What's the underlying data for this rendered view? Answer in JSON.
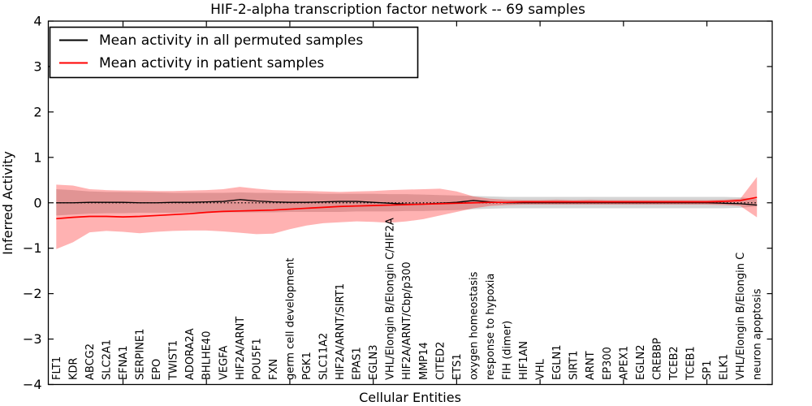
{
  "window": {
    "title": "HIF-2-alpha transcription factor network -- 69 samples"
  },
  "legend": {
    "position": "upper-left",
    "entries": [
      {
        "label": "Mean activity in all permuted samples",
        "color": "#000000"
      },
      {
        "label": "Mean activity in patient samples",
        "color": "#ff0000"
      }
    ]
  },
  "chart_data": {
    "type": "line",
    "title": "HIF-2-alpha transcription factor network -- 69 samples",
    "xlabel": "Cellular Entities",
    "ylabel": "Inferred Activity",
    "ylim": [
      -4,
      4
    ],
    "yticks": [
      4,
      3,
      2,
      1,
      0,
      -1,
      -2,
      -3,
      -4
    ],
    "ytick_labels": [
      "4",
      "3",
      "2",
      "1",
      "0",
      "−1",
      "−2",
      "−3",
      "−4"
    ],
    "xtick_index_positions": [
      4,
      9,
      14,
      19,
      24,
      29,
      34,
      39
    ],
    "grid": false,
    "zero_line": {
      "show": true,
      "style": "dotted",
      "color": "#000000",
      "value": 0
    },
    "legend_position": "upper left",
    "categories": [
      "FLT1",
      "KDR",
      "ABCG2",
      "SLC2A1",
      "EFNA1",
      "SERPINE1",
      "EPO",
      "TWIST1",
      "ADORA2A",
      "BHLHE40",
      "VEGFA",
      "HIF2A/ARNT",
      "POU5F1",
      "FXN",
      "germ cell development",
      "PGK1",
      "SLC11A2",
      "HIF2A/ARNT/SIRT1",
      "EPAS1",
      "EGLN3",
      "VHL/Elongin B/Elongin C/HIF2A",
      "HIF2A/ARNT/Cbp/p300",
      "MMP14",
      "CITED2",
      "ETS1",
      "oxygen homeostasis",
      "response to hypoxia",
      "FIH (dimer)",
      "HIF1AN",
      "VHL",
      "EGLN1",
      "SIRT1",
      "ARNT",
      "EP300",
      "APEX1",
      "EGLN2",
      "CREBBP",
      "TCEB2",
      "TCEB1",
      "SP1",
      "ELK1",
      "VHL/Elongin B/Elongin C",
      "neuron apoptosis"
    ],
    "series": [
      {
        "name": "Mean activity in all permuted samples",
        "color": "#000000",
        "line_width": 1.3,
        "values": [
          0.0,
          0.0,
          0.01,
          0.01,
          0.01,
          0.0,
          0.0,
          0.01,
          0.01,
          0.02,
          0.03,
          0.07,
          0.04,
          0.02,
          0.01,
          0.01,
          0.02,
          0.03,
          0.03,
          0.01,
          -0.01,
          -0.03,
          -0.03,
          -0.01,
          0.01,
          0.05,
          0.02,
          0.0,
          0.0,
          0.0,
          0.0,
          0.0,
          0.0,
          0.0,
          0.0,
          0.0,
          0.0,
          0.0,
          0.0,
          0.0,
          -0.01,
          -0.02,
          -0.05
        ]
      },
      {
        "name": "Mean activity in patient samples",
        "color": "#ff0000",
        "line_width": 1.7,
        "values": [
          -0.35,
          -0.32,
          -0.3,
          -0.3,
          -0.31,
          -0.3,
          -0.28,
          -0.26,
          -0.24,
          -0.21,
          -0.19,
          -0.18,
          -0.17,
          -0.16,
          -0.14,
          -0.12,
          -0.1,
          -0.08,
          -0.07,
          -0.06,
          -0.05,
          -0.04,
          -0.03,
          -0.02,
          -0.01,
          0.0,
          0.01,
          0.01,
          0.02,
          0.02,
          0.02,
          0.02,
          0.02,
          0.02,
          0.02,
          0.02,
          0.02,
          0.02,
          0.02,
          0.02,
          0.03,
          0.05,
          0.12
        ]
      }
    ],
    "bands": [
      {
        "name": "permuted-samples-std-band",
        "color": "#808080",
        "opacity": 0.33,
        "upper": [
          0.3,
          0.28,
          0.25,
          0.24,
          0.24,
          0.23,
          0.23,
          0.22,
          0.22,
          0.22,
          0.22,
          0.23,
          0.22,
          0.22,
          0.21,
          0.21,
          0.2,
          0.2,
          0.2,
          0.2,
          0.19,
          0.19,
          0.18,
          0.17,
          0.16,
          0.15,
          0.14,
          0.13,
          0.13,
          0.13,
          0.13,
          0.13,
          0.13,
          0.13,
          0.13,
          0.13,
          0.13,
          0.13,
          0.13,
          0.13,
          0.13,
          0.12,
          0.08
        ],
        "lower": [
          -0.28,
          -0.26,
          -0.24,
          -0.23,
          -0.23,
          -0.22,
          -0.22,
          -0.22,
          -0.21,
          -0.21,
          -0.21,
          -0.21,
          -0.21,
          -0.21,
          -0.2,
          -0.2,
          -0.2,
          -0.2,
          -0.19,
          -0.19,
          -0.19,
          -0.18,
          -0.18,
          -0.17,
          -0.16,
          -0.14,
          -0.13,
          -0.12,
          -0.12,
          -0.12,
          -0.12,
          -0.12,
          -0.12,
          -0.12,
          -0.12,
          -0.12,
          -0.12,
          -0.12,
          -0.12,
          -0.12,
          -0.12,
          -0.11,
          -0.08
        ]
      },
      {
        "name": "patient-samples-std-band",
        "color": "#ff0000",
        "opacity": 0.3,
        "upper": [
          0.4,
          0.38,
          0.3,
          0.28,
          0.27,
          0.27,
          0.26,
          0.26,
          0.27,
          0.28,
          0.3,
          0.35,
          0.31,
          0.28,
          0.27,
          0.26,
          0.25,
          0.24,
          0.25,
          0.26,
          0.28,
          0.29,
          0.3,
          0.31,
          0.25,
          0.14,
          0.09,
          0.07,
          0.06,
          0.06,
          0.07,
          0.06,
          0.07,
          0.06,
          0.06,
          0.06,
          0.06,
          0.06,
          0.06,
          0.06,
          0.07,
          0.09,
          0.57
        ],
        "lower": [
          -1.02,
          -0.87,
          -0.65,
          -0.62,
          -0.64,
          -0.67,
          -0.64,
          -0.62,
          -0.61,
          -0.61,
          -0.63,
          -0.66,
          -0.69,
          -0.68,
          -0.58,
          -0.5,
          -0.45,
          -0.43,
          -0.41,
          -0.42,
          -0.44,
          -0.41,
          -0.36,
          -0.28,
          -0.2,
          -0.12,
          -0.07,
          -0.05,
          -0.04,
          -0.04,
          -0.04,
          -0.04,
          -0.04,
          -0.04,
          -0.04,
          -0.04,
          -0.04,
          -0.04,
          -0.04,
          -0.04,
          -0.05,
          -0.07,
          -0.32
        ]
      }
    ]
  }
}
